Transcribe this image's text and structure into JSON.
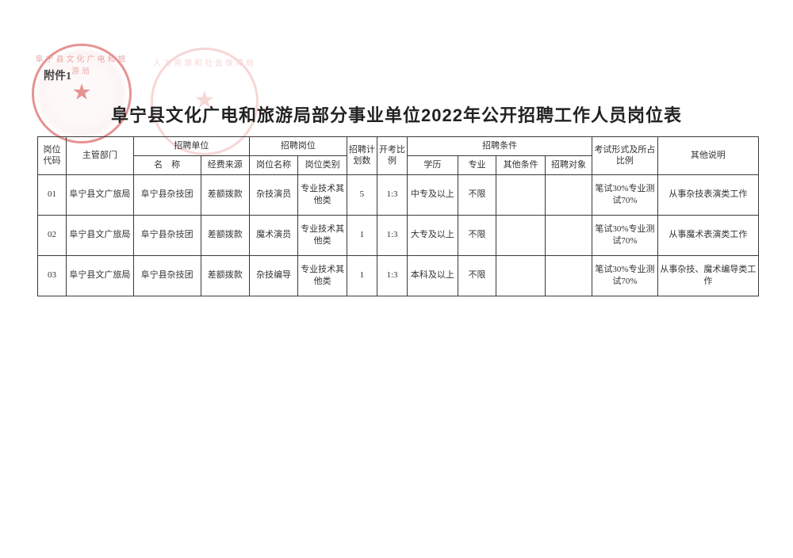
{
  "attachment_label": "附件1",
  "title": "阜宁县文化广电和旅游局部分事业单位2022年公开招聘工作人员岗位表",
  "headers": {
    "code": "岗位代码",
    "dept": "主管部门",
    "recruit_unit_group": "招聘单位",
    "unit_name": "名　称",
    "fund": "经费来源",
    "recruit_post_group": "招聘岗位",
    "post_name": "岗位名称",
    "post_type": "岗位类别",
    "plan": "招聘计划数",
    "ratio": "开考比例",
    "cond_group": "招聘条件",
    "edu": "学历",
    "major": "专业",
    "other_cond": "其他条件",
    "target": "招聘对象",
    "exam": "考试形式及所占比例",
    "note": "其他说明"
  },
  "rows": [
    {
      "code": "01",
      "dept": "阜宁县文广旅局",
      "unit": "阜宁县杂技团",
      "fund": "差额拨款",
      "post_name": "杂技演员",
      "post_type": "专业技术其他类",
      "plan": "5",
      "ratio": "1:3",
      "edu": "中专及以上",
      "major": "不限",
      "other_cond": "",
      "target": "",
      "exam": "笔试30%专业测试70%",
      "note": "从事杂技表演类工作"
    },
    {
      "code": "02",
      "dept": "阜宁县文广旅局",
      "unit": "阜宁县杂技团",
      "fund": "差额拨款",
      "post_name": "魔术演员",
      "post_type": "专业技术其他类",
      "plan": "1",
      "ratio": "1:3",
      "edu": "大专及以上",
      "major": "不限",
      "other_cond": "",
      "target": "",
      "exam": "笔试30%专业测试70%",
      "note": "从事魔术表演类工作"
    },
    {
      "code": "03",
      "dept": "阜宁县文广旅局",
      "unit": "阜宁县杂技团",
      "fund": "差额拨款",
      "post_name": "杂技编导",
      "post_type": "专业技术其他类",
      "plan": "1",
      "ratio": "1:3",
      "edu": "本科及以上",
      "major": "不限",
      "other_cond": "",
      "target": "",
      "exam": "笔试30%专业测试70%",
      "note": "从事杂技、魔术编导类工作"
    }
  ]
}
